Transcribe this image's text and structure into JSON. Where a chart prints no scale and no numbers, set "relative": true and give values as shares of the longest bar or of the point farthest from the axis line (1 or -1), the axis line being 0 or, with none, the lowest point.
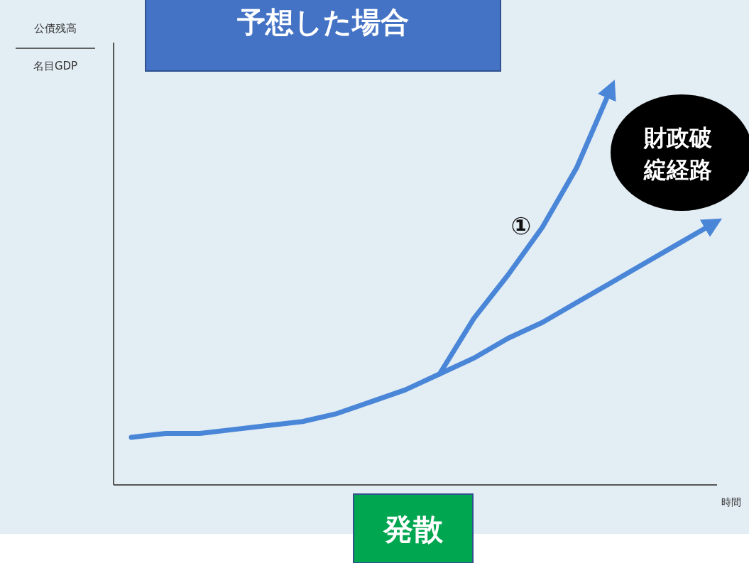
{
  "chart_data": {
    "type": "line",
    "relative": true,
    "title": "予想した場合",
    "xlabel": "時間",
    "categories": [
      null,
      null,
      null,
      null,
      null,
      null,
      null,
      null,
      null,
      null,
      null,
      null,
      null,
      null,
      null,
      null,
      null,
      null
    ],
    "series": [
      {
        "color": "#4a86d8",
        "values": [
          0.12,
          0.13,
          0.13,
          0.14,
          0.15,
          0.16,
          0.18,
          0.21,
          0.24,
          0.28,
          0.32,
          0.37,
          0.41,
          0.46,
          0.51,
          0.56,
          0.61,
          0.66
        ]
      },
      {
        "name": "①",
        "color": "#4a86d8",
        "values": [
          null,
          null,
          null,
          null,
          null,
          null,
          null,
          null,
          null,
          0.28,
          0.42,
          0.53,
          0.65,
          0.8,
          1.0,
          null,
          null,
          null
        ]
      }
    ],
    "annotations": [
      "財政破綻経路",
      "発散",
      "公債残高",
      "名目GDP"
    ]
  }
}
